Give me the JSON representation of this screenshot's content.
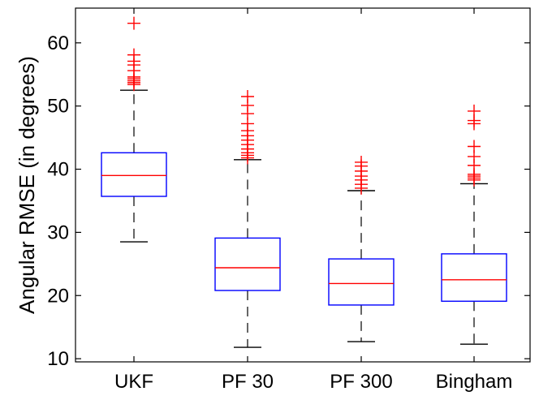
{
  "chart_data": {
    "type": "box",
    "title": "",
    "xlabel": "",
    "ylabel": "Angular RMSE (in degrees)",
    "ylim": [
      9.5,
      65.5
    ],
    "yticks": [
      10,
      20,
      30,
      40,
      50,
      60
    ],
    "categories": [
      "UKF",
      "PF 30",
      "PF 300",
      "Bingham"
    ],
    "colors": {
      "box": "#0000ff",
      "median": "#ff0000",
      "whisker": "#000000",
      "outlier": "#ff0000"
    },
    "boxes": [
      {
        "name": "UKF",
        "whisker_low": 28.5,
        "q1": 35.7,
        "median": 39.0,
        "q3": 42.6,
        "whisker_high": 52.5,
        "outliers": [
          53.4,
          53.7,
          54.0,
          54.3,
          54.6,
          55.6,
          56.5,
          57.1,
          58.1,
          63.1
        ]
      },
      {
        "name": "PF 30",
        "whisker_low": 11.8,
        "q1": 20.8,
        "median": 24.4,
        "q3": 29.1,
        "whisker_high": 41.5,
        "outliers": [
          41.8,
          42.2,
          42.6,
          43.2,
          43.9,
          44.6,
          45.3,
          46.1,
          47.2,
          48.8,
          50.1,
          51.5
        ]
      },
      {
        "name": "PF 300",
        "whisker_low": 12.7,
        "q1": 18.5,
        "median": 21.9,
        "q3": 25.8,
        "whisker_high": 36.6,
        "outliers": [
          37.0,
          37.6,
          38.3,
          38.9,
          39.7,
          40.5,
          41.1
        ]
      },
      {
        "name": "Bingham",
        "whisker_low": 12.3,
        "q1": 19.1,
        "median": 22.5,
        "q3": 26.6,
        "whisker_high": 37.7,
        "outliers": [
          38.3,
          38.6,
          38.9,
          39.2,
          40.6,
          42.0,
          43.6,
          47.2,
          47.7,
          49.2
        ]
      }
    ]
  }
}
